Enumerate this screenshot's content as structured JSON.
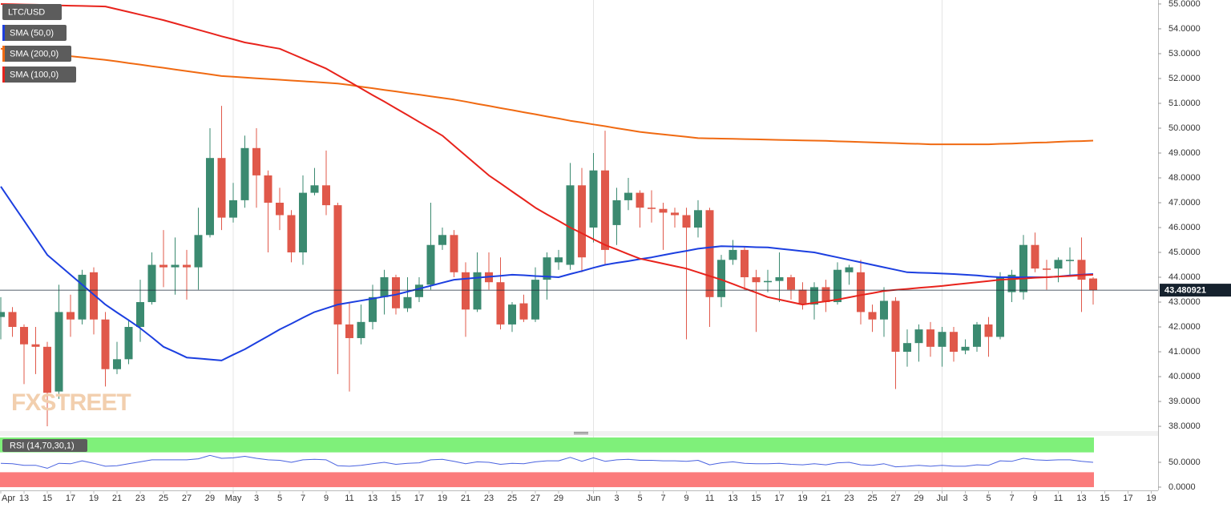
{
  "chart_data": [
    {
      "type": "candlestick",
      "title": "LTC/USD",
      "watermark": "FXSTREET",
      "categories": [
        "Apr",
        null,
        "13",
        null,
        "15",
        null,
        "17",
        null,
        "19",
        null,
        "21",
        null,
        "23",
        null,
        "25",
        null,
        "27",
        null,
        "29",
        null,
        "May",
        null,
        "3",
        null,
        "5",
        null,
        "7",
        null,
        "9",
        null,
        "11",
        null,
        "13",
        null,
        "15",
        null,
        "17",
        null,
        "19",
        null,
        "21",
        null,
        "23",
        null,
        "25",
        null,
        "27",
        null,
        "29",
        null,
        null,
        "Jun",
        null,
        "3",
        null,
        "5",
        null,
        "7",
        null,
        "9",
        null,
        "11",
        null,
        "13",
        null,
        "15",
        null,
        "17",
        null,
        "19",
        null,
        "21",
        null,
        "23",
        null,
        "25",
        null,
        "27",
        null,
        "29",
        null,
        "Jul",
        null,
        "3",
        null,
        "5",
        null,
        "7",
        null,
        "9",
        null,
        "11",
        null,
        "13",
        null,
        "15",
        null,
        "17",
        null,
        "19"
      ],
      "open": [
        42.4,
        42.6,
        42.0,
        41.3,
        41.2,
        39.4,
        42.6,
        42.3,
        44.2,
        42.3,
        40.3,
        40.7,
        42.0,
        43.0,
        44.5,
        44.4,
        44.5,
        44.4,
        45.7,
        48.8,
        46.4,
        47.1,
        49.2,
        48.1,
        47.0,
        46.5,
        45.0,
        47.4,
        47.7,
        46.9,
        42.1,
        41.55,
        42.2,
        43.2,
        44.0,
        42.75,
        43.2,
        43.7,
        45.3,
        45.7,
        44.2,
        42.7,
        44.2,
        43.8,
        42.1,
        42.95,
        42.3,
        43.9,
        44.6,
        44.5,
        47.7,
        46.0,
        48.3,
        46.1,
        47.1,
        47.4,
        46.8,
        46.75,
        46.6,
        46.5,
        46.0,
        46.7,
        43.2,
        44.7,
        45.1,
        44.0,
        43.8,
        43.85,
        44.0,
        43.5,
        42.9,
        43.6,
        43.0,
        44.2,
        44.2,
        42.6,
        42.3,
        43.05,
        41.0,
        41.35,
        41.9,
        41.2,
        41.8,
        41.05,
        41.2,
        42.1,
        41.6,
        43.4,
        43.4,
        45.3,
        44.35,
        44.35,
        44.65,
        44.7,
        43.95,
        null,
        null,
        null,
        null,
        null
      ],
      "high": [
        43.2,
        42.8,
        42.1,
        42.0,
        41.4,
        43.7,
        43.3,
        44.3,
        44.4,
        42.6,
        41.4,
        42.3,
        43.9,
        45.0,
        45.9,
        45.6,
        45.1,
        46.8,
        50.0,
        50.9,
        47.8,
        49.7,
        50.0,
        48.3,
        47.6,
        46.7,
        48.1,
        48.4,
        49.1,
        47.0,
        43.0,
        42.9,
        43.7,
        44.3,
        44.1,
        44.0,
        44.0,
        47.0,
        46.0,
        45.9,
        44.6,
        45.0,
        45.0,
        44.8,
        43.0,
        43.3,
        44.4,
        45.0,
        45.1,
        48.6,
        48.4,
        49.0,
        49.9,
        47.6,
        48.0,
        47.5,
        47.5,
        47.0,
        46.8,
        46.8,
        47.1,
        46.8,
        44.9,
        45.5,
        45.2,
        44.3,
        44.3,
        45.0,
        44.1,
        43.8,
        43.8,
        43.9,
        44.6,
        44.5,
        44.7,
        42.9,
        43.6,
        43.2,
        41.9,
        42.1,
        42.2,
        42.0,
        42.0,
        41.5,
        42.2,
        42.4,
        44.2,
        44.3,
        45.7,
        45.8,
        44.7,
        44.8,
        45.2,
        45.6,
        44.0,
        null,
        null,
        null,
        null,
        null
      ],
      "low": [
        41.5,
        41.6,
        39.7,
        40.1,
        38.0,
        39.1,
        41.6,
        42.1,
        41.7,
        39.6,
        40.1,
        40.5,
        41.4,
        42.9,
        43.6,
        43.3,
        43.1,
        43.5,
        45.6,
        45.9,
        46.2,
        46.8,
        46.8,
        45.0,
        45.9,
        44.6,
        44.5,
        47.3,
        46.5,
        40.1,
        39.4,
        41.3,
        41.9,
        42.5,
        42.5,
        42.6,
        43.0,
        43.5,
        45.1,
        44.0,
        41.6,
        42.6,
        43.5,
        41.9,
        41.8,
        42.2,
        42.2,
        43.1,
        44.3,
        44.3,
        44.2,
        45.4,
        44.5,
        45.3,
        46.7,
        46.0,
        46.2,
        45.1,
        46.0,
        41.5,
        45.6,
        42.0,
        42.8,
        44.5,
        43.5,
        41.8,
        43.4,
        43.0,
        43.1,
        42.7,
        42.3,
        42.6,
        42.9,
        43.7,
        42.1,
        41.8,
        41.6,
        39.5,
        40.4,
        40.6,
        40.8,
        40.4,
        40.6,
        40.9,
        41.0,
        40.8,
        41.5,
        43.0,
        43.1,
        44.2,
        43.5,
        43.8,
        44.1,
        42.6,
        42.9,
        null,
        null,
        null,
        null,
        null
      ],
      "close": [
        42.6,
        42.0,
        41.3,
        41.2,
        39.35,
        42.6,
        42.3,
        44.1,
        42.3,
        40.3,
        40.7,
        42.0,
        43.0,
        44.5,
        44.4,
        44.5,
        44.4,
        45.7,
        48.8,
        46.4,
        47.1,
        49.2,
        48.1,
        47.0,
        46.5,
        45.0,
        47.4,
        47.7,
        46.9,
        42.1,
        41.55,
        42.2,
        43.2,
        44.0,
        42.75,
        43.2,
        43.7,
        45.3,
        45.7,
        44.2,
        42.7,
        44.2,
        43.8,
        42.1,
        42.9,
        42.3,
        43.9,
        44.8,
        44.8,
        47.7,
        44.8,
        48.3,
        45.1,
        47.1,
        47.4,
        46.8,
        46.75,
        46.6,
        46.5,
        46.0,
        46.7,
        43.2,
        44.7,
        45.1,
        44.0,
        43.8,
        43.85,
        44.0,
        43.5,
        42.9,
        43.6,
        43.0,
        44.3,
        44.4,
        42.6,
        42.3,
        43.05,
        41.0,
        41.35,
        41.9,
        41.2,
        41.8,
        41.0,
        41.2,
        42.1,
        41.6,
        44.0,
        44.1,
        45.3,
        44.35,
        44.3,
        44.7,
        44.7,
        43.9,
        43.48,
        null,
        null,
        null,
        null,
        null
      ],
      "up_color": "#3b8a70",
      "down_color": "#e0584a",
      "series": [
        {
          "name": "SMA (50,0)",
          "color": "#1c3fe0",
          "values": [
            47.65,
            46.96,
            46.28,
            45.59,
            44.9,
            44.5,
            44.1,
            43.7,
            43.3,
            42.9,
            42.58,
            42.27,
            41.95,
            41.58,
            41.2,
            40.99,
            40.77,
            40.73,
            40.69,
            40.65,
            40.88,
            41.1,
            41.37,
            41.63,
            41.9,
            42.13,
            42.37,
            42.6,
            42.75,
            42.9,
            42.98,
            43.06,
            43.14,
            43.22,
            43.3,
            43.42,
            43.54,
            43.66,
            43.78,
            43.9,
            43.94,
            43.98,
            44.02,
            44.06,
            44.1,
            44.08,
            44.05,
            44.03,
            44.0,
            44.13,
            44.25,
            44.38,
            44.5,
            44.58,
            44.65,
            44.73,
            44.8,
            44.89,
            44.98,
            45.06,
            45.15,
            45.2,
            45.25,
            45.24,
            45.23,
            45.21,
            45.2,
            45.15,
            45.1,
            45.05,
            45.0,
            44.9,
            44.8,
            44.7,
            44.6,
            44.5,
            44.4,
            44.3,
            44.2,
            44.18,
            44.17,
            44.15,
            44.13,
            44.1,
            44.07,
            44.03,
            44.0,
            44.0,
            44.0,
            44.0,
            44.0,
            44.03,
            44.07,
            44.1,
            44.13,
            null,
            null,
            null,
            null,
            null
          ]
        },
        {
          "name": "SMA (200,0)",
          "color": "#f06a12",
          "values": [
            53.2,
            53.15,
            53.1,
            53.05,
            53.0,
            52.95,
            52.9,
            52.85,
            52.8,
            52.75,
            52.69,
            52.62,
            52.56,
            52.49,
            52.43,
            52.36,
            52.3,
            52.23,
            52.17,
            52.1,
            52.07,
            52.04,
            52.01,
            51.98,
            51.95,
            51.92,
            51.89,
            51.86,
            51.83,
            51.8,
            51.74,
            51.67,
            51.61,
            51.54,
            51.48,
            51.41,
            51.35,
            51.28,
            51.22,
            51.15,
            51.07,
            50.98,
            50.9,
            50.81,
            50.73,
            50.64,
            50.56,
            50.47,
            50.39,
            50.3,
            50.23,
            50.15,
            50.08,
            50.0,
            49.93,
            49.85,
            49.8,
            49.75,
            49.7,
            49.65,
            49.6,
            49.59,
            49.58,
            49.57,
            49.56,
            49.55,
            49.54,
            49.53,
            49.52,
            49.51,
            49.5,
            49.49,
            49.47,
            49.46,
            49.44,
            49.43,
            49.41,
            49.4,
            49.38,
            49.37,
            49.35,
            49.35,
            49.35,
            49.35,
            49.35,
            49.35,
            49.37,
            49.38,
            49.4,
            49.42,
            49.43,
            49.45,
            49.47,
            49.48,
            49.5,
            null,
            null,
            null,
            null,
            null
          ]
        },
        {
          "name": "SMA (100,0)",
          "color": "#e8231c",
          "values": [
            55.0,
            54.99,
            54.98,
            54.97,
            54.96,
            54.94,
            54.93,
            54.92,
            54.91,
            54.9,
            54.79,
            54.68,
            54.57,
            54.46,
            54.35,
            54.22,
            54.09,
            53.96,
            53.83,
            53.7,
            53.58,
            53.45,
            53.37,
            53.28,
            53.2,
            53.0,
            52.8,
            52.6,
            52.4,
            52.13,
            51.87,
            51.6,
            51.33,
            51.07,
            50.8,
            50.53,
            50.25,
            49.98,
            49.7,
            49.3,
            48.9,
            48.5,
            48.1,
            47.78,
            47.45,
            47.13,
            46.8,
            46.53,
            46.27,
            46.0,
            45.77,
            45.53,
            45.3,
            45.12,
            44.93,
            44.75,
            44.65,
            44.55,
            44.45,
            44.35,
            44.2,
            44.05,
            43.9,
            43.73,
            43.55,
            43.38,
            43.2,
            43.1,
            43.0,
            42.9,
            42.97,
            43.03,
            43.1,
            43.19,
            43.28,
            43.36,
            43.45,
            43.49,
            43.53,
            43.57,
            43.61,
            43.65,
            43.7,
            43.75,
            43.8,
            43.85,
            43.9,
            43.93,
            43.95,
            43.98,
            44.0,
            44.03,
            44.05,
            44.08,
            44.1,
            null,
            null,
            null,
            null,
            null
          ]
        }
      ],
      "last_price": 43.480921,
      "ylim": [
        37.84,
        55.16
      ],
      "yticks": [
        {
          "value": 55,
          "label": "55.0000"
        },
        {
          "value": 54,
          "label": "54.0000"
        },
        {
          "value": 53,
          "label": "53.0000"
        },
        {
          "value": 52,
          "label": "52.0000"
        },
        {
          "value": 51,
          "label": "51.0000"
        },
        {
          "value": 50,
          "label": "50.0000"
        },
        {
          "value": 49,
          "label": "49.0000"
        },
        {
          "value": 48,
          "label": "48.0000"
        },
        {
          "value": 47,
          "label": "47.0000"
        },
        {
          "value": 46,
          "label": "46.0000"
        },
        {
          "value": 45,
          "label": "45.0000"
        },
        {
          "value": 44,
          "label": "44.0000"
        },
        {
          "value": 43,
          "label": "43.0000"
        },
        {
          "value": 42,
          "label": "42.0000"
        },
        {
          "value": 41,
          "label": "41.0000"
        },
        {
          "value": 40,
          "label": "40.0000"
        },
        {
          "value": 39,
          "label": "39.0000"
        },
        {
          "value": 38,
          "label": "38.0000"
        }
      ],
      "grid": false
    },
    {
      "type": "line",
      "series": [
        {
          "name": "RSI (14,70,30,1)",
          "color": "#4a63e0",
          "values": [
            48,
            47,
            44,
            44,
            38,
            48,
            47,
            53,
            48,
            42,
            43,
            47,
            51,
            55,
            55,
            55,
            55,
            57,
            64,
            58,
            59,
            62,
            58,
            55,
            54,
            50,
            55,
            56,
            55,
            43,
            42,
            44,
            47,
            50,
            46,
            48,
            49,
            55,
            56,
            52,
            47,
            51,
            50,
            46,
            48,
            47,
            51,
            53,
            53,
            60,
            52,
            59,
            52,
            55,
            56,
            54,
            54,
            53,
            53,
            52,
            54,
            45,
            49,
            51,
            48,
            47,
            47,
            48,
            46,
            45,
            47,
            45,
            49,
            50,
            45,
            44,
            47,
            41,
            42,
            44,
            42,
            44,
            42,
            42,
            45,
            44,
            53,
            52,
            58,
            55,
            54,
            55,
            55,
            52,
            50,
            null,
            null,
            null,
            null,
            null
          ]
        }
      ],
      "bands": [
        {
          "from": 70,
          "to": 100,
          "color": "#7ff07a"
        },
        {
          "from": 0,
          "to": 30,
          "color": "#fb7b7b"
        }
      ],
      "ylim": [
        -6.5,
        101.6
      ],
      "yticks": [
        {
          "value": 50,
          "label": "50.0000"
        },
        {
          "value": 0,
          "label": "0.0000"
        }
      ]
    }
  ]
}
